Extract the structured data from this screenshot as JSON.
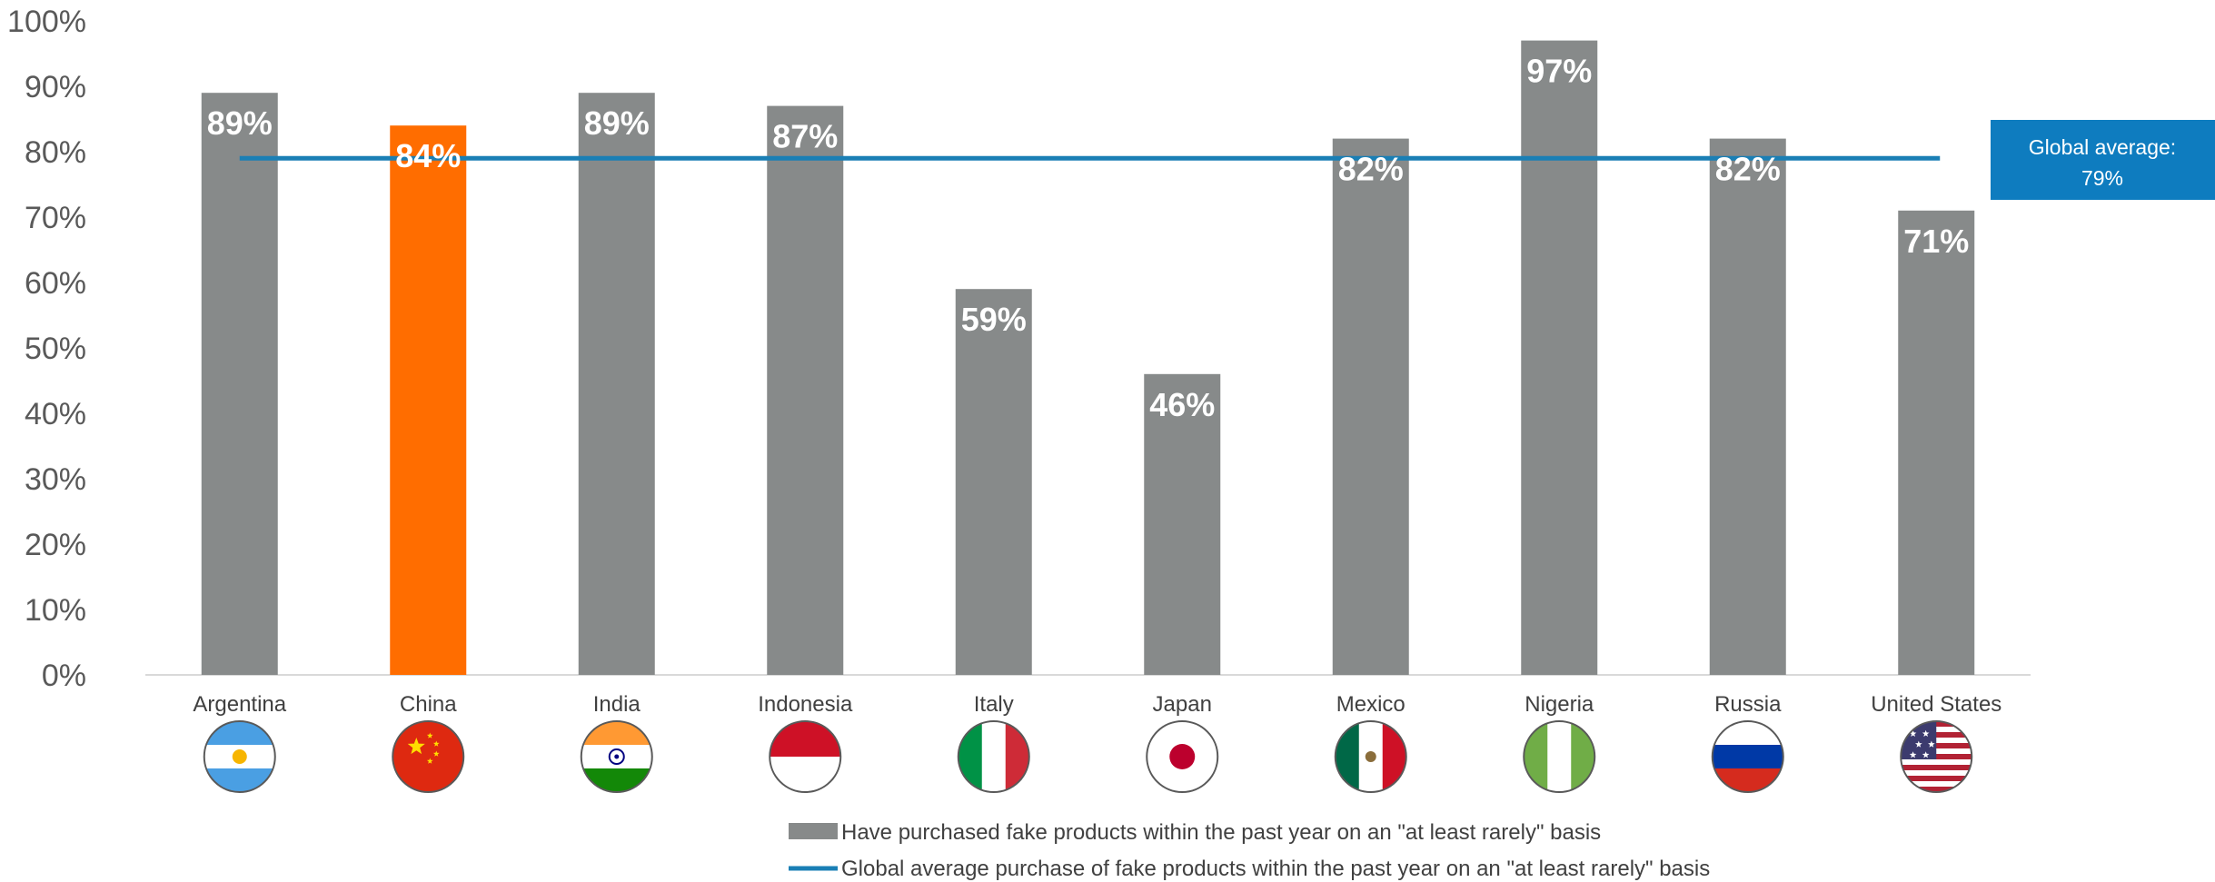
{
  "chart_data": {
    "type": "bar",
    "categories": [
      "Argentina",
      "China",
      "India",
      "Indonesia",
      "Italy",
      "Japan",
      "Mexico",
      "Nigeria",
      "Russia",
      "United States"
    ],
    "series": [
      {
        "name": "Have purchased fake products within the past year on an \"at least rarely\" basis",
        "type": "bar",
        "values": [
          89,
          84,
          89,
          87,
          59,
          46,
          82,
          97,
          82,
          71
        ],
        "data_labels": [
          "89%",
          "84%",
          "89%",
          "87%",
          "59%",
          "46%",
          "82%",
          "97%",
          "82%",
          "71%"
        ]
      },
      {
        "name": "Global average purchase of fake products within the past year on an \"at least rarely\" basis",
        "type": "line",
        "value": 79
      }
    ],
    "average_callout": {
      "line1": "Global average:",
      "line2": "79%"
    },
    "y_ticks": [
      "0%",
      "10%",
      "20%",
      "30%",
      "40%",
      "50%",
      "60%",
      "70%",
      "80%",
      "90%",
      "100%"
    ],
    "ylim": [
      0,
      100
    ],
    "grid": false,
    "legend_position": "bottom",
    "highlighted_category": "China",
    "flag_icons": [
      "argentina-flag-icon",
      "china-flag-icon",
      "india-flag-icon",
      "indonesia-flag-icon",
      "italy-flag-icon",
      "japan-flag-icon",
      "mexico-flag-icon",
      "nigeria-flag-icon",
      "russia-flag-icon",
      "united-states-flag-icon"
    ],
    "colors": {
      "bar": "#878a8a",
      "highlight": "#ff6d00",
      "average": "#1a7fb5",
      "average_box": "#0e7cbf"
    }
  }
}
